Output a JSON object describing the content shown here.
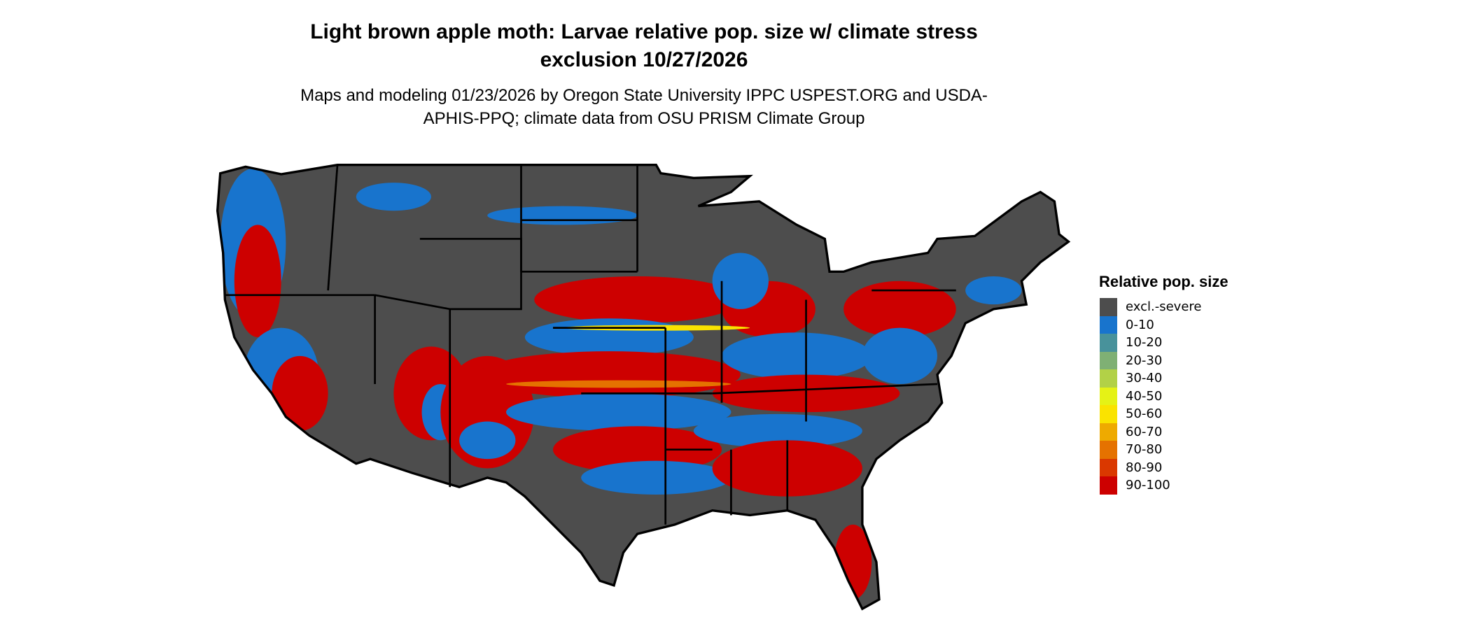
{
  "title": "Light brown apple moth: Larvae relative pop. size w/ climate stress exclusion 10/27/2026",
  "subtitle": "Maps and modeling 01/23/2026 by Oregon State University IPPC USPEST.ORG and USDA-APHIS-PPQ; climate data from OSU PRISM Climate Group",
  "legend": {
    "title": "Relative pop. size",
    "items": [
      {
        "label": "excl.-severe",
        "color": "#4d4d4d"
      },
      {
        "label": "0-10",
        "color": "#1874cd"
      },
      {
        "label": "10-20",
        "color": "#48929b"
      },
      {
        "label": "20-30",
        "color": "#7fb074"
      },
      {
        "label": "30-40",
        "color": "#b2d147"
      },
      {
        "label": "40-50",
        "color": "#e5f216"
      },
      {
        "label": "50-60",
        "color": "#fae300"
      },
      {
        "label": "60-70",
        "color": "#eeaa00"
      },
      {
        "label": "70-80",
        "color": "#e57200"
      },
      {
        "label": "80-90",
        "color": "#da3800"
      },
      {
        "label": "90-100",
        "color": "#cd0000"
      }
    ]
  }
}
